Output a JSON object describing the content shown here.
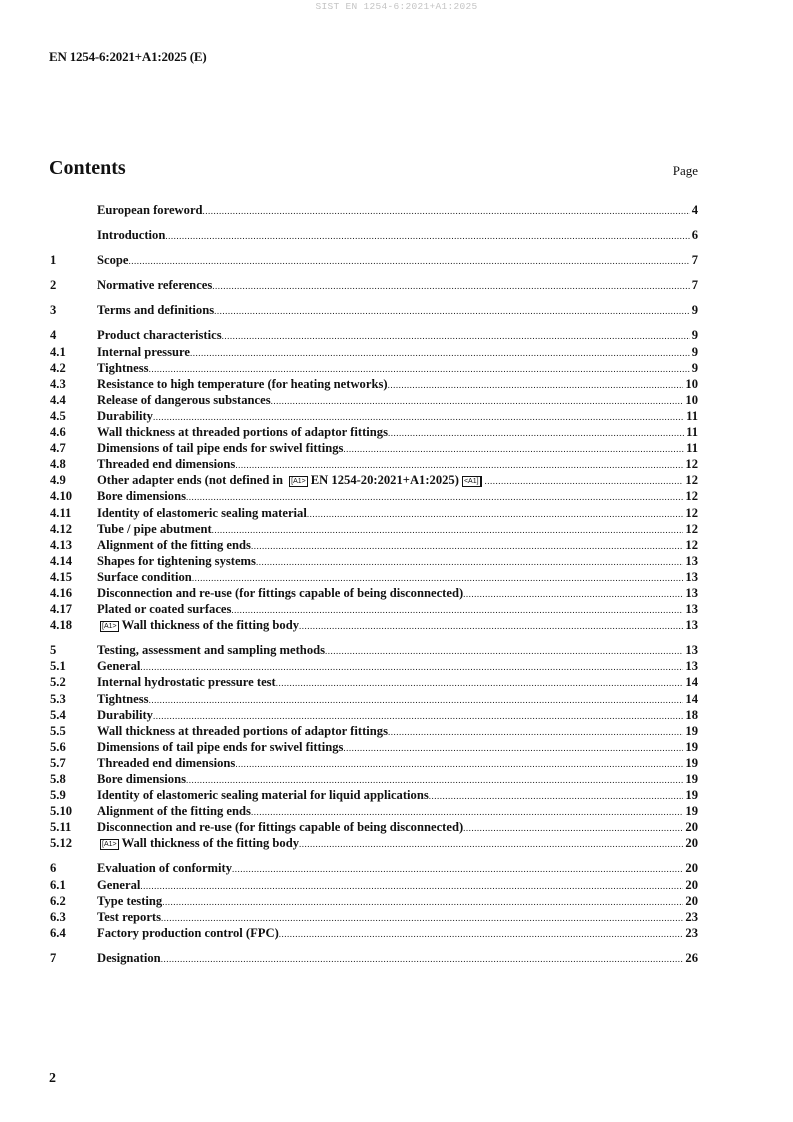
{
  "watermark": "SIST EN 1254-6:2021+A1:2025",
  "header": {
    "doc_id": "EN 1254-6:2021+A1:2025 (E)"
  },
  "contents": {
    "title": "Contents",
    "page_label": "Page",
    "entries": [
      {
        "num": "",
        "parts": [
          "European foreword"
        ],
        "page": "4",
        "gap": false
      },
      {
        "num": "",
        "parts": [
          "Introduction "
        ],
        "page": "6",
        "gap": true
      },
      {
        "num": "1",
        "parts": [
          "Scope"
        ],
        "page": "7",
        "gap": true
      },
      {
        "num": "2",
        "parts": [
          "Normative references"
        ],
        "page": "7",
        "gap": true
      },
      {
        "num": "3",
        "parts": [
          "Terms and definitions "
        ],
        "page": "9",
        "gap": true
      },
      {
        "num": "4",
        "parts": [
          "Product characteristics"
        ],
        "page": "9",
        "gap": true
      },
      {
        "num": "4.1",
        "parts": [
          "Internal pressure "
        ],
        "page": "9"
      },
      {
        "num": "4.2",
        "parts": [
          "Tightness"
        ],
        "page": "9"
      },
      {
        "num": "4.3",
        "parts": [
          "Resistance to high temperature (for heating networks) "
        ],
        "page": "10"
      },
      {
        "num": "4.4",
        "parts": [
          "Release of dangerous substances"
        ],
        "page": "10"
      },
      {
        "num": "4.5",
        "parts": [
          "Durability"
        ],
        "page": "11"
      },
      {
        "num": "4.6",
        "parts": [
          "Wall thickness at threaded portions of adaptor fittings"
        ],
        "page": "11"
      },
      {
        "num": "4.7",
        "parts": [
          "Dimensions of tail pipe ends for swivel fittings"
        ],
        "page": "11"
      },
      {
        "num": "4.8",
        "parts": [
          "Threaded end dimensions "
        ],
        "page": "12"
      },
      {
        "num": "4.9",
        "parts": [
          "Other adapter ends (not defined in ",
          "[A1>",
          "EN 1254-20:2021+A1:2025)",
          "<A1]"
        ],
        "page": "12"
      },
      {
        "num": "4.10",
        "parts": [
          "Bore dimensions"
        ],
        "page": "12"
      },
      {
        "num": "4.11",
        "parts": [
          "Identity of elastomeric sealing material"
        ],
        "page": "12"
      },
      {
        "num": "4.12",
        "parts": [
          "Tube / pipe abutment"
        ],
        "page": "12"
      },
      {
        "num": "4.13",
        "parts": [
          "Alignment of the fitting ends"
        ],
        "page": "12"
      },
      {
        "num": "4.14",
        "parts": [
          "Shapes for tightening systems"
        ],
        "page": "13"
      },
      {
        "num": "4.15",
        "parts": [
          "Surface condition "
        ],
        "page": "13"
      },
      {
        "num": "4.16",
        "parts": [
          "Disconnection and re-use (for fittings capable of being disconnected)"
        ],
        "page": "13"
      },
      {
        "num": "4.17",
        "parts": [
          "Plated or coated surfaces"
        ],
        "page": "13"
      },
      {
        "num": "4.18",
        "parts": [
          "[A1>",
          "Wall thickness of the fitting body "
        ],
        "page": "13"
      },
      {
        "num": "5",
        "parts": [
          "Testing, assessment and sampling methods "
        ],
        "page": "13",
        "gap": true
      },
      {
        "num": "5.1",
        "parts": [
          "General"
        ],
        "page": "13"
      },
      {
        "num": "5.2",
        "parts": [
          "Internal hydrostatic pressure test"
        ],
        "page": "14"
      },
      {
        "num": "5.3",
        "parts": [
          "Tightness"
        ],
        "page": "14"
      },
      {
        "num": "5.4",
        "parts": [
          "Durability"
        ],
        "page": "18"
      },
      {
        "num": "5.5",
        "parts": [
          "Wall thickness at threaded portions of adaptor fittings"
        ],
        "page": "19"
      },
      {
        "num": "5.6",
        "parts": [
          "Dimensions of tail pipe ends for swivel fittings"
        ],
        "page": "19"
      },
      {
        "num": "5.7",
        "parts": [
          "Threaded end dimensions "
        ],
        "page": "19"
      },
      {
        "num": "5.8",
        "parts": [
          "Bore dimensions"
        ],
        "page": "19"
      },
      {
        "num": "5.9",
        "parts": [
          "Identity of elastomeric sealing material for liquid applications "
        ],
        "page": "19"
      },
      {
        "num": "5.10",
        "parts": [
          "Alignment of the fitting ends"
        ],
        "page": "19"
      },
      {
        "num": "5.11",
        "parts": [
          "Disconnection and re-use (for fittings capable of being disconnected)"
        ],
        "page": "20"
      },
      {
        "num": "5.12",
        "parts": [
          "[A1>",
          "Wall thickness of the fitting body "
        ],
        "page": "20"
      },
      {
        "num": "6",
        "parts": [
          "Evaluation of conformity "
        ],
        "page": "20",
        "gap": true
      },
      {
        "num": "6.1",
        "parts": [
          "General"
        ],
        "page": "20"
      },
      {
        "num": "6.2",
        "parts": [
          "Type testing"
        ],
        "page": "20"
      },
      {
        "num": "6.3",
        "parts": [
          "Test reports"
        ],
        "page": "23"
      },
      {
        "num": "6.4",
        "parts": [
          "Factory production control (FPC) "
        ],
        "page": "23"
      },
      {
        "num": "7",
        "parts": [
          "Designation"
        ],
        "page": "26",
        "gap": true
      }
    ]
  },
  "footer": {
    "page_number": "2"
  }
}
